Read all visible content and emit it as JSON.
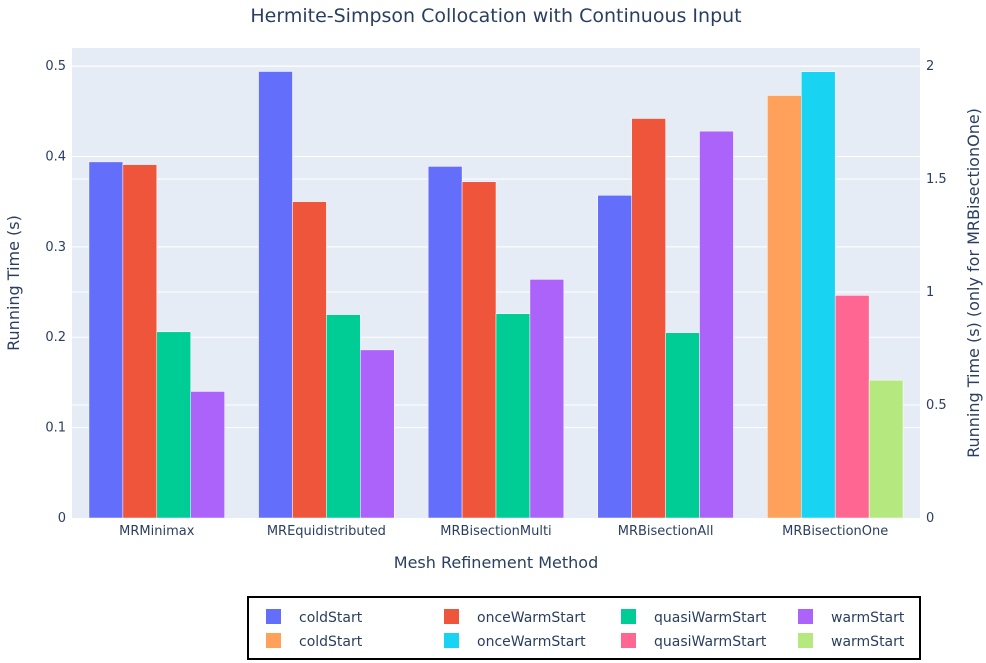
{
  "chart_data": {
    "type": "bar",
    "title": "Hermite-Simpson Collocation with Continuous Input",
    "xlabel": "Mesh Refinement Method",
    "ylabel": "Running Time (s)",
    "y2label": "Running Time (s) (only for MRBisectionOne)",
    "categories": [
      "MRMinimax",
      "MREquidistributed",
      "MRBisectionMulti",
      "MRBisectionAll",
      "MRBisectionOne"
    ],
    "ylim": [
      0,
      0.52
    ],
    "yticks": [
      "0",
      "0.1",
      "0.2",
      "0.3",
      "0.4",
      "0.5"
    ],
    "y2lim": [
      0,
      2.08
    ],
    "y2ticks": [
      "0",
      "0.5",
      "1",
      "1.5",
      "2"
    ],
    "grid": true,
    "legend_position": "bottom",
    "series": [
      {
        "name": "coldStart",
        "axis": "y",
        "color": "#636efa",
        "values": [
          0.394,
          0.494,
          0.389,
          0.357,
          null
        ]
      },
      {
        "name": "onceWarmStart",
        "axis": "y",
        "color": "#ef553b",
        "values": [
          0.391,
          0.35,
          0.372,
          0.442,
          null
        ]
      },
      {
        "name": "quasiWarmStart",
        "axis": "y",
        "color": "#00cc96",
        "values": [
          0.206,
          0.225,
          0.226,
          0.205,
          null
        ]
      },
      {
        "name": "warmStart",
        "axis": "y",
        "color": "#ab63fa",
        "values": [
          0.14,
          0.186,
          0.264,
          0.428,
          null
        ]
      },
      {
        "name": "coldStart",
        "axis": "y2",
        "color": "#ffa15a",
        "values": [
          null,
          null,
          null,
          null,
          1.87
        ]
      },
      {
        "name": "onceWarmStart",
        "axis": "y2",
        "color": "#19d3f3",
        "values": [
          null,
          null,
          null,
          null,
          1.975
        ]
      },
      {
        "name": "quasiWarmStart",
        "axis": "y2",
        "color": "#ff6692",
        "values": [
          null,
          null,
          null,
          null,
          0.985
        ]
      },
      {
        "name": "warmStart",
        "axis": "y2",
        "color": "#b6e880",
        "values": [
          null,
          null,
          null,
          null,
          0.61
        ]
      }
    ]
  }
}
